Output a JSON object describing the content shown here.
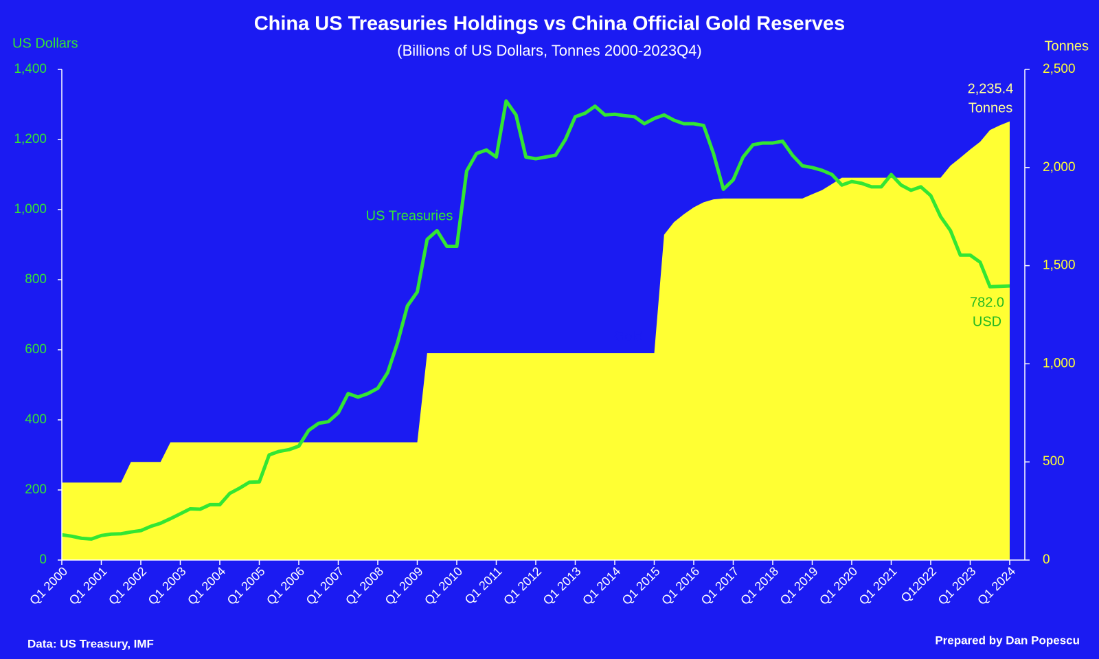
{
  "chart_data": {
    "type": "combo",
    "title": "China US Treasuries Holdings vs China Official Gold Reserves",
    "subtitle": "(Billions of US Dollars, Tonnes 2000-2023Q4)",
    "y_label": "US Dollars",
    "y2_label": "Tonnes",
    "source": "Data: US Treasury, IMF",
    "credit": "Prepared by Dan Popescu",
    "categories": [
      "Q1 2000",
      null,
      null,
      null,
      "Q1 2001",
      null,
      null,
      null,
      "Q1 2002",
      null,
      null,
      null,
      "Q1 2003",
      null,
      null,
      null,
      "Q1 2004",
      null,
      null,
      null,
      "Q1 2005",
      null,
      null,
      null,
      "Q1 2006",
      null,
      null,
      null,
      "Q1 2007",
      null,
      null,
      null,
      "Q1 2008",
      null,
      null,
      null,
      "Q1 2009",
      null,
      null,
      null,
      "Q1 2010",
      null,
      null,
      null,
      "Q1 2011",
      null,
      null,
      null,
      "Q1 2012",
      null,
      null,
      null,
      "Q1 2013",
      null,
      null,
      null,
      "Q1 2014",
      null,
      null,
      null,
      "Q1 2015",
      null,
      null,
      null,
      "Q1 2016",
      null,
      null,
      null,
      "Q1 2017",
      null,
      null,
      null,
      "Q1 2018",
      null,
      null,
      null,
      "Q1 2019",
      null,
      null,
      null,
      "Q1 2020",
      null,
      null,
      null,
      "Q1 2021",
      null,
      null,
      null,
      "Q12022",
      null,
      null,
      null,
      "Q1 2023",
      null,
      null,
      null,
      "Q1 2024"
    ],
    "series": [
      {
        "name": "Gold",
        "type": "area",
        "axis": "y2",
        "color": "#ffff33",
        "values": [
          395,
          395,
          395,
          395,
          395,
          395,
          395,
          500,
          500,
          500,
          500,
          600,
          600,
          600,
          600,
          600,
          600,
          600,
          600,
          600,
          600,
          600,
          600,
          600,
          600,
          600,
          600,
          600,
          600,
          600,
          600,
          600,
          600,
          600,
          600,
          600,
          600,
          1054,
          1054,
          1054,
          1054,
          1054,
          1054,
          1054,
          1054,
          1054,
          1054,
          1054,
          1054,
          1054,
          1054,
          1054,
          1054,
          1054,
          1054,
          1054,
          1054,
          1054,
          1054,
          1054,
          1054,
          1658,
          1722,
          1762,
          1797,
          1823,
          1838,
          1842,
          1842,
          1842,
          1842,
          1842,
          1842,
          1842,
          1842,
          1842,
          1864,
          1885,
          1916,
          1948,
          1948,
          1948,
          1948,
          1948,
          1948,
          1948,
          1948,
          1948,
          1948,
          1948,
          2010,
          2050,
          2092,
          2131,
          2191,
          2215,
          2235.4
        ]
      },
      {
        "name": "US Treasuries",
        "type": "line",
        "color": "#33e633",
        "values": [
          72,
          68,
          62,
          60,
          70,
          74,
          75,
          80,
          84,
          96,
          105,
          118,
          132,
          146,
          145,
          158,
          158,
          190,
          205,
          222,
          223,
          300,
          310,
          315,
          325,
          370,
          390,
          395,
          420,
          475,
          465,
          475,
          490,
          535,
          620,
          725,
          765,
          915,
          940,
          895,
          895,
          1110,
          1160,
          1170,
          1150,
          1310,
          1270,
          1150,
          1145,
          1150,
          1155,
          1200,
          1265,
          1275,
          1295,
          1270,
          1272,
          1268,
          1265,
          1245,
          1260,
          1270,
          1255,
          1245,
          1245,
          1240,
          1160,
          1058,
          1085,
          1150,
          1185,
          1190,
          1190,
          1195,
          1155,
          1125,
          1120,
          1112,
          1100,
          1070,
          1080,
          1075,
          1065,
          1065,
          1100,
          1070,
          1055,
          1065,
          1040,
          980,
          940,
          870,
          870,
          850,
          780,
          781,
          782.0
        ]
      }
    ],
    "annotations": [
      "2,235.4",
      "Tonnes",
      "782.0",
      "USD"
    ],
    "ylim": [
      0,
      1400
    ],
    "yticks": [
      0,
      200,
      400,
      600,
      800,
      {
        "value": 1000,
        "label": "1,000"
      },
      {
        "value": 1200,
        "label": "1,200"
      },
      {
        "value": 1400,
        "label": "1,400"
      }
    ],
    "y2lim": [
      0,
      2500
    ],
    "y2ticks": [
      0,
      500,
      {
        "value": 1000,
        "label": "1,000"
      },
      {
        "value": 1500,
        "label": "1,500"
      },
      {
        "value": 2000,
        "label": "2,000"
      },
      {
        "value": 2500,
        "label": "2,500"
      }
    ]
  }
}
